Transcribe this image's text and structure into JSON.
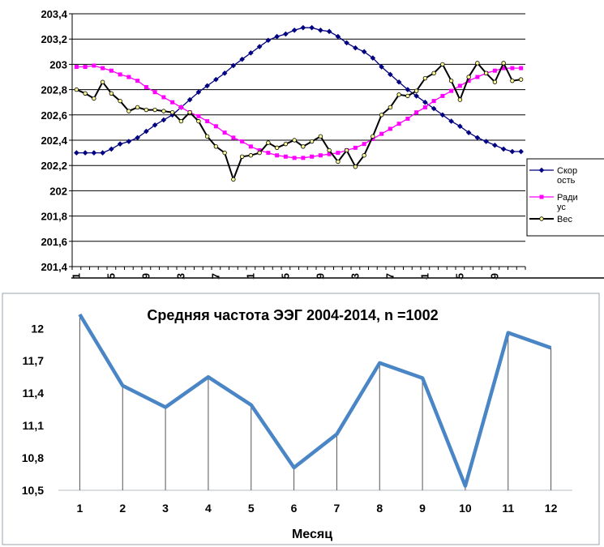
{
  "chart_data": [
    {
      "type": "line",
      "title": "",
      "xlabel": "",
      "ylabel": "",
      "ylim": [
        201.4,
        203.4
      ],
      "y_ticks": [
        "201,4",
        "201,6",
        "201,8",
        "202",
        "202,2",
        "202,4",
        "202,6",
        "202,8",
        "203",
        "203,2",
        "203,4"
      ],
      "x_tick_labels": [
        "1",
        "5",
        "9",
        "13",
        "17",
        "21",
        "25",
        "29",
        "33",
        "37",
        "41",
        "45",
        "49"
      ],
      "grid": "horizontal",
      "legend_position": "right",
      "x": [
        1,
        2,
        3,
        4,
        5,
        6,
        7,
        8,
        9,
        10,
        11,
        12,
        13,
        14,
        15,
        16,
        17,
        18,
        19,
        20,
        21,
        22,
        23,
        24,
        25,
        26,
        27,
        28,
        29,
        30,
        31,
        32,
        33,
        34,
        35,
        36,
        37,
        38,
        39,
        40,
        41,
        42,
        43,
        44,
        45,
        46,
        47,
        48,
        49,
        50,
        51,
        52
      ],
      "series": [
        {
          "name": "Скор ость",
          "color": "#000080",
          "marker": "diamond",
          "values": [
            202.3,
            202.3,
            202.3,
            202.3,
            202.33,
            202.37,
            202.39,
            202.42,
            202.47,
            202.52,
            202.56,
            202.6,
            202.66,
            202.72,
            202.78,
            202.83,
            202.88,
            202.93,
            202.99,
            203.04,
            203.09,
            203.14,
            203.19,
            203.22,
            203.24,
            203.27,
            203.29,
            203.29,
            203.27,
            203.26,
            203.22,
            203.17,
            203.13,
            203.1,
            203.05,
            202.98,
            202.92,
            202.86,
            202.8,
            202.75,
            202.7,
            202.65,
            202.6,
            202.55,
            202.51,
            202.46,
            202.42,
            202.39,
            202.36,
            202.33,
            202.31,
            202.31
          ]
        },
        {
          "name": "Ради ус",
          "color": "#ff00ff",
          "marker": "square",
          "values": [
            202.98,
            202.98,
            202.99,
            202.97,
            202.95,
            202.92,
            202.9,
            202.87,
            202.82,
            202.78,
            202.74,
            202.7,
            202.66,
            202.62,
            202.59,
            202.55,
            202.51,
            202.46,
            202.42,
            202.39,
            202.35,
            202.32,
            202.3,
            202.28,
            202.27,
            202.26,
            202.26,
            202.27,
            202.28,
            202.29,
            202.3,
            202.32,
            202.34,
            202.37,
            202.41,
            202.45,
            202.49,
            202.53,
            202.57,
            202.62,
            202.66,
            202.71,
            202.75,
            202.79,
            202.83,
            202.87,
            202.9,
            202.93,
            202.95,
            202.97,
            202.97,
            202.97
          ]
        },
        {
          "name": "Вес",
          "color": "#000000",
          "marker": "circle",
          "values": [
            202.8,
            202.77,
            202.73,
            202.86,
            202.77,
            202.71,
            202.63,
            202.66,
            202.64,
            202.64,
            202.63,
            202.62,
            202.55,
            202.62,
            202.55,
            202.43,
            202.35,
            202.3,
            202.09,
            202.27,
            202.28,
            202.3,
            202.38,
            202.34,
            202.37,
            202.4,
            202.35,
            202.39,
            202.43,
            202.32,
            202.23,
            202.32,
            202.19,
            202.28,
            202.43,
            202.6,
            202.66,
            202.76,
            202.75,
            202.79,
            202.89,
            202.93,
            203.0,
            202.87,
            202.72,
            202.9,
            203.01,
            202.93,
            202.86,
            203.01,
            202.87,
            202.88
          ]
        }
      ]
    },
    {
      "type": "line",
      "title": "Средняя частота ЭЭГ  2004-2014, n =1002",
      "xlabel": "Месяц",
      "ylabel": "",
      "ylim": [
        10.5,
        12.1
      ],
      "y_ticks": [
        "10,5",
        "10,8",
        "11,1",
        "11,4",
        "11,7",
        "12"
      ],
      "categories": [
        "1",
        "2",
        "3",
        "4",
        "5",
        "6",
        "7",
        "8",
        "9",
        "10",
        "11",
        "12"
      ],
      "drop_lines": true,
      "grid": "none",
      "color": "#4a86c5",
      "values": [
        12.13,
        11.47,
        11.27,
        11.55,
        11.29,
        10.71,
        11.02,
        11.68,
        11.54,
        10.54,
        11.96,
        11.82
      ]
    }
  ]
}
